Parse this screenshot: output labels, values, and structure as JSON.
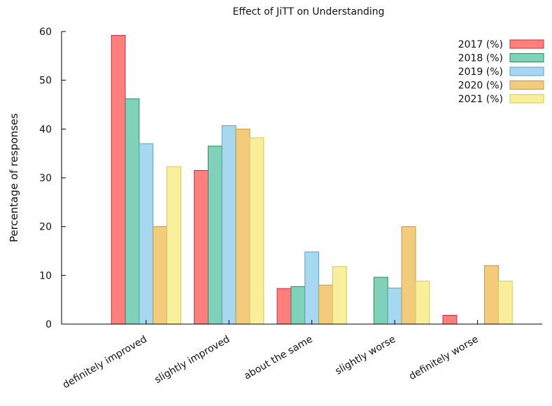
{
  "chart_data": {
    "type": "bar",
    "title": "Effect of JiTT on Understanding",
    "xlabel": "",
    "ylabel": "Percentage of responses",
    "ylim": [
      0,
      60
    ],
    "yticks": [
      0,
      10,
      20,
      30,
      40,
      50,
      60
    ],
    "grid": false,
    "legend_position": "top-right",
    "categories": [
      "definitely improved",
      "slightly improved",
      "about the same",
      "slightly worse",
      "definitely worse"
    ],
    "series": [
      {
        "name": "2017 (%)",
        "values": [
          59.2,
          31.5,
          7.3,
          0,
          1.8
        ],
        "color": "#ff7f7f",
        "stroke": "#cc2d3c"
      },
      {
        "name": "2018 (%)",
        "values": [
          46.2,
          36.5,
          7.7,
          9.6,
          0
        ],
        "color": "#7fd1b9",
        "stroke": "#2e8b57"
      },
      {
        "name": "2019 (%)",
        "values": [
          37.0,
          40.7,
          14.8,
          7.4,
          0
        ],
        "color": "#a8d8f0",
        "stroke": "#5aa0c8"
      },
      {
        "name": "2020 (%)",
        "values": [
          20.0,
          40.0,
          8.0,
          20.0,
          12.0
        ],
        "color": "#f2cb7c",
        "stroke": "#c89a3a"
      },
      {
        "name": "2021 (%)",
        "values": [
          32.3,
          38.2,
          11.8,
          8.8,
          8.8
        ],
        "color": "#f8ef9c",
        "stroke": "#d6c85a"
      }
    ]
  }
}
